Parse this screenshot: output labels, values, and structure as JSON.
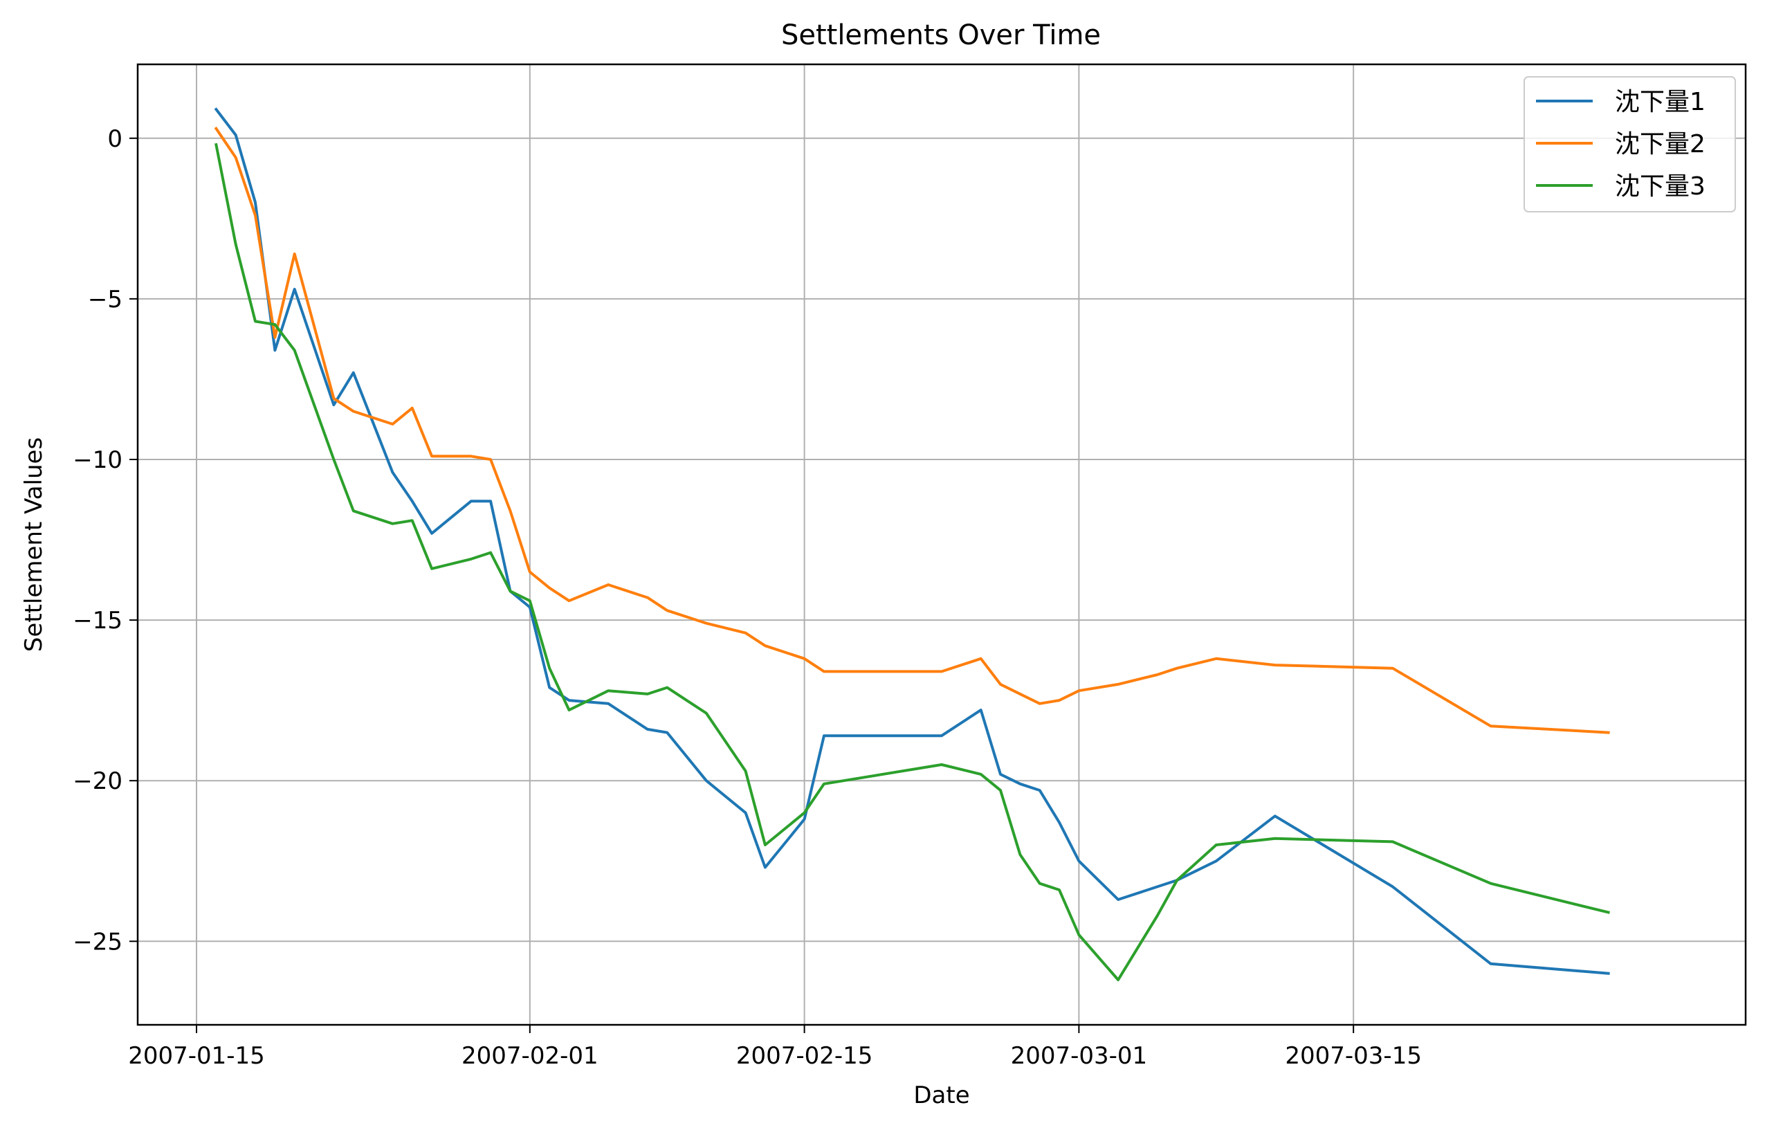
{
  "chart_data": {
    "type": "line",
    "title": "Settlements Over Time",
    "xlabel": "Date",
    "ylabel": "Settlement Values",
    "x_ticks": [
      "2007-01-15",
      "2007-02-01",
      "2007-02-15",
      "2007-03-01",
      "2007-03-15"
    ],
    "y_ticks": [
      0,
      -5,
      -10,
      -15,
      -20,
      -25
    ],
    "y_tick_labels": [
      "0",
      "−5",
      "−10",
      "−15",
      "−20",
      "−25"
    ],
    "xlim": [
      "2007-01-12",
      "2007-04-04"
    ],
    "ylim": [
      -27.6,
      2.3
    ],
    "grid": true,
    "legend_position": "top-right",
    "x": [
      "2007-01-16",
      "2007-01-17",
      "2007-01-18",
      "2007-01-19",
      "2007-01-20",
      "2007-01-22",
      "2007-01-23",
      "2007-01-25",
      "2007-01-26",
      "2007-01-27",
      "2007-01-29",
      "2007-01-30",
      "2007-01-31",
      "2007-02-01",
      "2007-02-02",
      "2007-02-03",
      "2007-02-05",
      "2007-02-07",
      "2007-02-08",
      "2007-02-10",
      "2007-02-12",
      "2007-02-13",
      "2007-02-15",
      "2007-02-16",
      "2007-02-22",
      "2007-02-24",
      "2007-02-25",
      "2007-02-26",
      "2007-02-27",
      "2007-02-28",
      "2007-03-01",
      "2007-03-03",
      "2007-03-05",
      "2007-03-06",
      "2007-03-08",
      "2007-03-11",
      "2007-03-17",
      "2007-03-22",
      "2007-03-28"
    ],
    "series": [
      {
        "name": "沈下量1",
        "color": "#1f77b4",
        "values": [
          0.9,
          0.1,
          -2.0,
          -6.6,
          -4.7,
          -8.3,
          -7.3,
          -10.4,
          -11.3,
          -12.3,
          -11.3,
          -11.3,
          -14.1,
          -14.6,
          -17.1,
          -17.5,
          -17.6,
          -18.4,
          -18.5,
          -20.0,
          -21.0,
          -22.7,
          -21.2,
          -18.6,
          -18.6,
          -17.8,
          -19.8,
          -20.1,
          -20.3,
          -21.3,
          -22.5,
          -23.7,
          -23.3,
          -23.1,
          -22.5,
          -21.1,
          -23.3,
          -25.7,
          -26.0
        ]
      },
      {
        "name": "沈下量2",
        "color": "#ff7f0e",
        "values": [
          0.3,
          -0.6,
          -2.4,
          -6.2,
          -3.6,
          -8.1,
          -8.5,
          -8.9,
          -8.4,
          -9.9,
          -9.9,
          -10.0,
          -11.6,
          -13.5,
          -14.0,
          -14.4,
          -13.9,
          -14.3,
          -14.7,
          -15.1,
          -15.4,
          -15.8,
          -16.2,
          -16.6,
          -16.6,
          -16.2,
          -17.0,
          -17.3,
          -17.6,
          -17.5,
          -17.2,
          -17.0,
          -16.7,
          -16.5,
          -16.2,
          -16.4,
          -16.5,
          -18.3,
          -18.5
        ]
      },
      {
        "name": "沈下量3",
        "color": "#2ca02c",
        "values": [
          -0.2,
          -3.3,
          -5.7,
          -5.8,
          -6.6,
          -10.0,
          -11.6,
          -12.0,
          -11.9,
          -13.4,
          -13.1,
          -12.9,
          -14.1,
          -14.4,
          -16.5,
          -17.8,
          -17.2,
          -17.3,
          -17.1,
          -17.9,
          -19.7,
          -22.0,
          -21.0,
          -20.1,
          -19.5,
          -19.8,
          -20.3,
          -22.3,
          -23.2,
          -23.4,
          -24.8,
          -26.2,
          -24.2,
          -23.1,
          -22.0,
          -21.8,
          -21.9,
          -23.2,
          -24.1
        ]
      }
    ]
  }
}
